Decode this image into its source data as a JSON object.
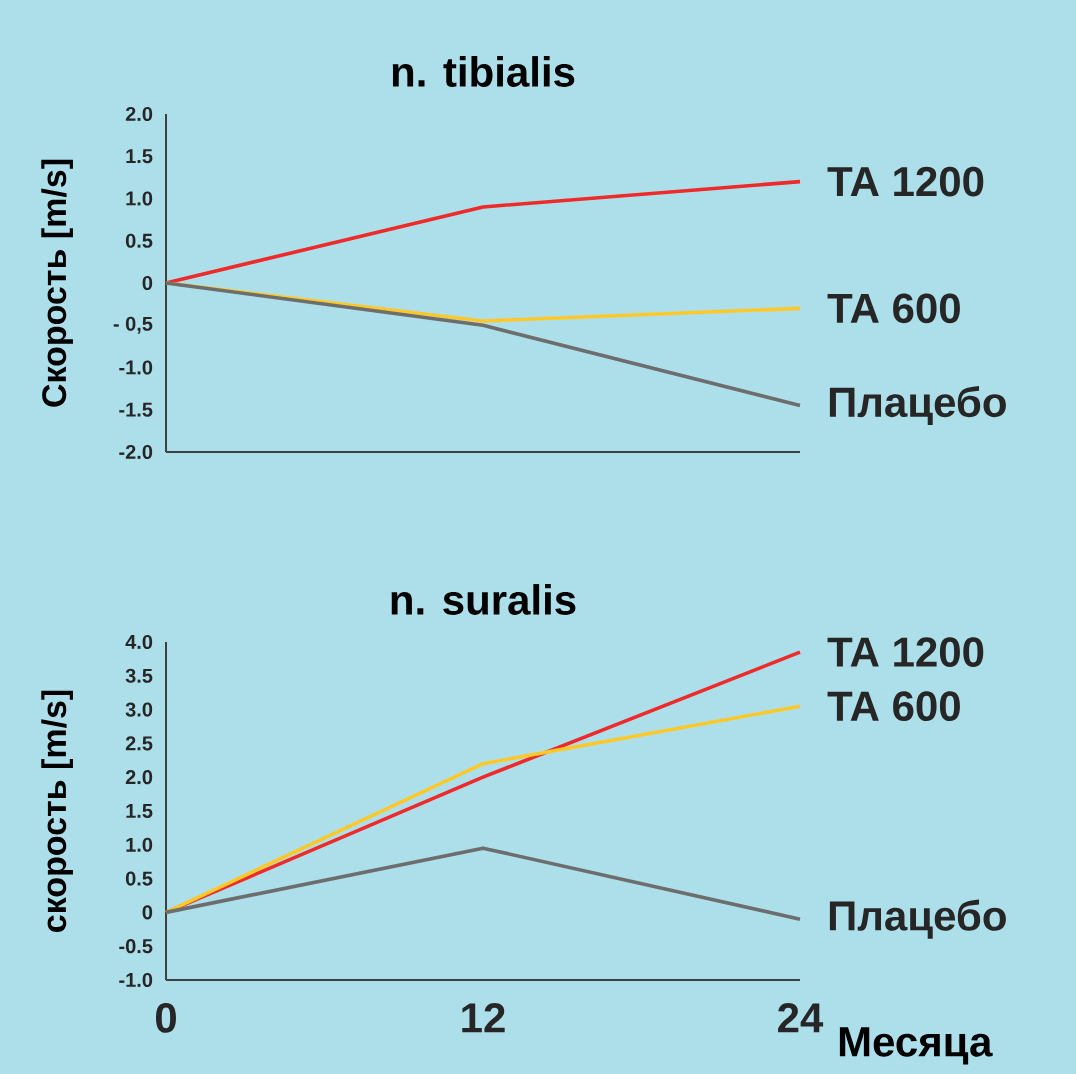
{
  "chart_data": [
    {
      "type": "line",
      "title": "n. tibialis",
      "ylabel": "Скорость [m/s]",
      "xlim": [
        0,
        24
      ],
      "xticks": [
        0,
        12,
        24
      ],
      "x": [
        0,
        12,
        24
      ],
      "ylim": [
        -2,
        2
      ],
      "tick_labels": "y",
      "marker": "none",
      "line_style": "solid",
      "yticks": [
        {
          "value": -2,
          "label": "-2.0"
        },
        {
          "value": -1.5,
          "label": "-1.5"
        },
        {
          "value": -1,
          "label": "-1.0"
        },
        {
          "value": -0.5,
          "label": "- 0,5"
        },
        0,
        {
          "value": 0.5,
          "label": "0.5"
        },
        {
          "value": 1,
          "label": "1.0"
        },
        {
          "value": 1.5,
          "label": "1.5"
        },
        {
          "value": 2,
          "label": "2.0"
        }
      ],
      "series": [
        {
          "name": "TA 1200",
          "color": "#ee2a2a",
          "values": [
            0,
            0.9,
            1.2
          ]
        },
        {
          "name": "TA 600",
          "color": "#ffc82a",
          "values": [
            0,
            -0.45,
            -0.3
          ]
        },
        {
          "name": "Плацебо",
          "color": "#6d6d6d",
          "values": [
            0,
            -0.5,
            -1.45
          ]
        }
      ]
    },
    {
      "type": "line",
      "title": "n. suralis",
      "ylabel": "скорость [m/s]",
      "xlabel": "Месяца",
      "xlim": [
        0,
        24
      ],
      "xticks": [
        0,
        12,
        24
      ],
      "x": [
        0,
        12,
        24
      ],
      "ylim": [
        -1,
        4
      ],
      "marker": "none",
      "line_style": "solid",
      "yticks": [
        {
          "value": -1,
          "label": "-1.0"
        },
        {
          "value": -0.5,
          "label": "-0.5"
        },
        0,
        {
          "value": 0.5,
          "label": "0.5"
        },
        {
          "value": 1,
          "label": "1.0"
        },
        {
          "value": 1.5,
          "label": "1.5"
        },
        {
          "value": 2,
          "label": "2.0"
        },
        {
          "value": 2.5,
          "label": "2.5"
        },
        {
          "value": 3,
          "label": "3.0"
        },
        {
          "value": 3.5,
          "label": "3.5"
        },
        {
          "value": 4,
          "label": "4.0"
        }
      ],
      "series": [
        {
          "name": "TA 1200",
          "color": "#ee2a2a",
          "values": [
            0,
            2.0,
            3.85
          ]
        },
        {
          "name": "TA 600",
          "color": "#ffc82a",
          "values": [
            0,
            2.2,
            3.05
          ]
        },
        {
          "name": "Плацебо",
          "color": "#6d6d6d",
          "values": [
            0,
            0.95,
            -0.1
          ]
        }
      ]
    }
  ]
}
